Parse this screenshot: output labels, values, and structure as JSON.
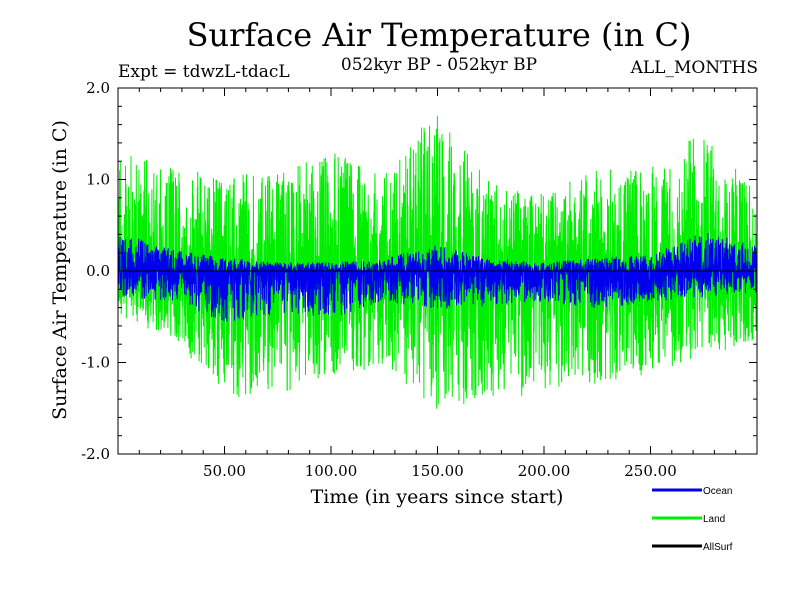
{
  "chart_data": {
    "type": "line",
    "title": "Surface Air Temperature (in C)",
    "subtitle_left": "Expt = tdwzL-tdacL",
    "subtitle_center": "052kyr BP - 052kyr BP",
    "subtitle_right": "ALL_MONTHS",
    "xlabel": "Time (in years since start)",
    "ylabel": "Surface Air Temperature (in C)",
    "xlim": [
      0,
      300
    ],
    "ylim": [
      -2.0,
      2.0
    ],
    "x_ticks": [
      50,
      100,
      150,
      200,
      250
    ],
    "x_tick_labels": [
      "50.00",
      "100.00",
      "150.00",
      "200.00",
      "250.00"
    ],
    "y_ticks": [
      -2.0,
      -1.0,
      0.0,
      1.0,
      2.0
    ],
    "y_tick_labels": [
      "-2.0",
      "-1.0",
      "0.0",
      "1.0",
      "2.0"
    ],
    "x_step": 0.0833,
    "series": [
      {
        "name": "Ocean",
        "color": "#0000ee",
        "envelope_low": [
          -0.3,
          -0.35,
          -0.6,
          -0.5,
          -0.55,
          -0.35,
          -0.45,
          -0.4,
          -0.35,
          -0.45,
          -0.35,
          -0.3,
          -0.25
        ],
        "envelope_high": [
          0.45,
          0.25,
          0.15,
          0.1,
          0.1,
          0.15,
          0.3,
          0.15,
          0.1,
          0.15,
          0.2,
          0.45,
          0.3
        ]
      },
      {
        "name": "Land",
        "color": "#00ee00",
        "envelope_low": [
          -0.5,
          -0.8,
          -1.45,
          -1.45,
          -1.2,
          -1.1,
          -1.6,
          -1.5,
          -1.4,
          -1.3,
          -1.2,
          -1.0,
          -0.8
        ],
        "envelope_high": [
          1.45,
          1.2,
          1.1,
          1.15,
          1.4,
          1.2,
          1.85,
          1.0,
          0.9,
          1.2,
          1.2,
          1.65,
          1.0
        ]
      },
      {
        "name": "AllSurf",
        "color": "#000000",
        "envelope_low": [],
        "envelope_high": []
      }
    ],
    "legend_position": "bottom-right"
  }
}
